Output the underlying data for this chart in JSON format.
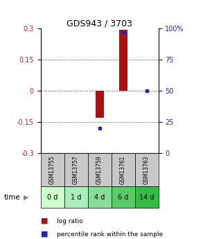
{
  "title": "GDS943 / 3703",
  "samples": [
    "GSM13755",
    "GSM13757",
    "GSM13759",
    "GSM13761",
    "GSM13763"
  ],
  "time_labels": [
    "0 d",
    "1 d",
    "4 d",
    "6 d",
    "14 d"
  ],
  "log_ratio": [
    0.0,
    0.0,
    -0.13,
    0.295,
    0.0
  ],
  "percentile_rank": [
    null,
    null,
    20.0,
    97.0,
    50.0
  ],
  "ylim_left": [
    -0.3,
    0.3
  ],
  "ylim_right": [
    0,
    100
  ],
  "yticks_left": [
    -0.3,
    -0.15,
    0.0,
    0.15,
    0.3
  ],
  "yticks_right": [
    0,
    25,
    50,
    75,
    100
  ],
  "ytick_labels_right": [
    "0",
    "25",
    "50",
    "75",
    "100%"
  ],
  "ytick_labels_left": [
    "-0.3",
    "-0.15",
    "0",
    "0.15",
    "0.3"
  ],
  "bar_color": "#AA1111",
  "dot_color": "#2222BB",
  "zero_line_color": "#CC2222",
  "grid_color": "#444444",
  "cell_bg_gray": "#C8C8C8",
  "green_colors": [
    "#CCFFCC",
    "#AAEEBB",
    "#88DD99",
    "#55CC66",
    "#33BB44"
  ],
  "bar_width": 0.35,
  "fig_width": 2.93,
  "fig_height": 3.45
}
